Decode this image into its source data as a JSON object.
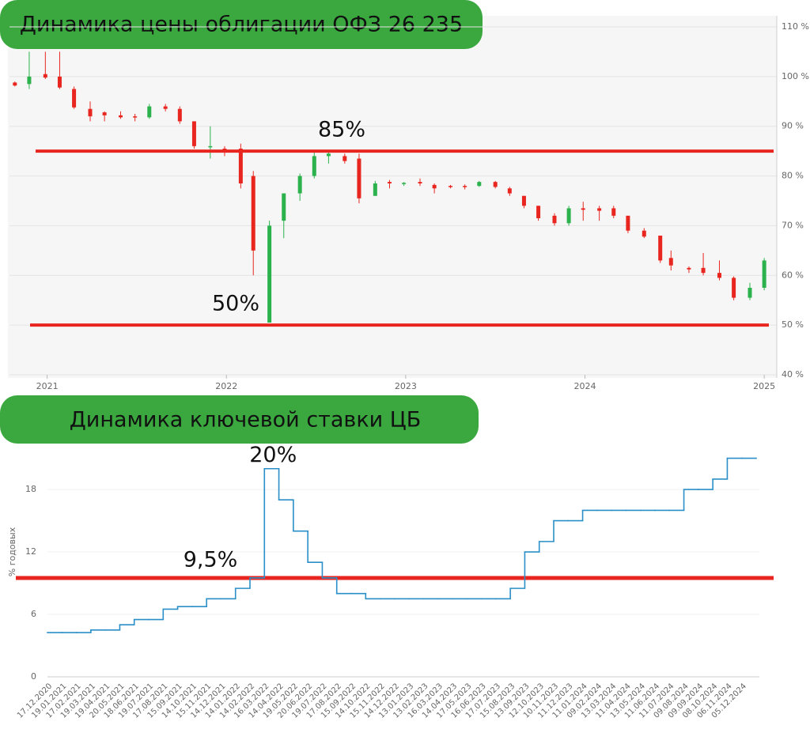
{
  "chart_data": [
    {
      "type": "candlestick",
      "title": "Динамика цены облигации ОФЗ 26 235",
      "x": [
        2020.82,
        2020.9,
        2020.99,
        2021.07,
        2021.15,
        2021.24,
        2021.32,
        2021.41,
        2021.49,
        2021.57,
        2021.66,
        2021.74,
        2021.82,
        2021.91,
        2021.99,
        2022.08,
        2022.15,
        2022.24,
        2022.32,
        2022.41,
        2022.49,
        2022.57,
        2022.66,
        2022.74,
        2022.83,
        2022.91,
        2022.99,
        2023.08,
        2023.16,
        2023.25,
        2023.33,
        2023.41,
        2023.5,
        2023.58,
        2023.66,
        2023.74,
        2023.83,
        2023.91,
        2023.99,
        2024.08,
        2024.16,
        2024.24,
        2024.33,
        2024.42,
        2024.48,
        2024.58,
        2024.66,
        2024.75,
        2024.83,
        2024.92,
        2025.0
      ],
      "open": [
        98.8,
        98.5,
        100.5,
        100,
        97.5,
        93.5,
        92.8,
        92.2,
        92,
        91.8,
        94,
        93.5,
        91,
        86,
        85.5,
        85.5,
        80,
        50.5,
        71,
        76.5,
        80,
        84,
        84,
        83.5,
        76,
        78.8,
        78.5,
        78.8,
        78.2,
        78,
        78,
        78,
        78.8,
        77.5,
        76,
        74,
        72,
        70.5,
        73.5,
        73.5,
        73.5,
        72,
        69,
        68,
        63.5,
        61.5,
        61.5,
        60.5,
        59.5,
        55.5,
        57.5
      ],
      "high": [
        99,
        105,
        105,
        105,
        98,
        95,
        93,
        93,
        92.5,
        94.5,
        94.5,
        94,
        91,
        90,
        86,
        86.5,
        81,
        71,
        76.5,
        80.5,
        85,
        85,
        84.5,
        84.5,
        79,
        79.2,
        78.8,
        79.5,
        78.5,
        78.2,
        78.3,
        79,
        79,
        77.8,
        76,
        74,
        72.5,
        74,
        74.8,
        74,
        74,
        72,
        69.5,
        68,
        65,
        61.8,
        64.5,
        63,
        59.8,
        58.5,
        63.5
      ],
      "low": [
        98,
        97.5,
        99.5,
        97.5,
        93.5,
        91,
        91,
        91.5,
        91,
        91.5,
        93,
        90.5,
        85.5,
        83.5,
        84,
        77.5,
        60,
        50.5,
        67.5,
        75,
        79.5,
        82.5,
        82.5,
        74.5,
        76,
        77.5,
        78,
        78,
        76.5,
        77.5,
        77.3,
        77.8,
        77.5,
        76,
        73.5,
        71,
        70,
        70,
        71,
        71,
        71.5,
        68.5,
        67.5,
        62.5,
        61,
        60.5,
        60,
        59,
        55,
        55,
        57
      ],
      "close": [
        98.2,
        100,
        99.8,
        97.8,
        93.8,
        92,
        92.2,
        91.8,
        91.8,
        94,
        93.5,
        91,
        86,
        86,
        85,
        78.5,
        65,
        70,
        76.5,
        80,
        84,
        84.5,
        83,
        75.5,
        78.5,
        78.5,
        78.6,
        78.5,
        77.5,
        77.8,
        77.8,
        78.8,
        77.8,
        76.5,
        74,
        71.5,
        70.5,
        73.5,
        73.2,
        73,
        72,
        69,
        67.8,
        63,
        62,
        61.2,
        60.5,
        59.5,
        55.5,
        57.5,
        63
      ],
      "up_color": "#2bb24c",
      "down_color": "#e8261f",
      "xlim": [
        2020.79,
        2025.07
      ],
      "xticks": [
        2021,
        2022,
        2023,
        2024,
        2025
      ],
      "ylim": [
        40,
        110
      ],
      "yticks": [
        {
          "value": 40,
          "label": "40 %"
        },
        {
          "value": 50,
          "label": "50 %"
        },
        {
          "value": 60,
          "label": "60 %"
        },
        {
          "value": 70,
          "label": "70 %"
        },
        {
          "value": 80,
          "label": "80 %"
        },
        {
          "value": 90,
          "label": "90 %"
        },
        {
          "value": 100,
          "label": "100 %"
        },
        {
          "value": 110,
          "label": "110 %"
        }
      ],
      "grid": true,
      "hlines": [
        {
          "value": 85,
          "label": "85%"
        },
        {
          "value": 50,
          "label": "50%"
        }
      ],
      "hline_color": "#e8261f"
    },
    {
      "type": "step",
      "title": "Динамика ключевой ставки ЦБ",
      "y_label": "% годовых",
      "categories": [
        "17.12.2020",
        "19.01.2021",
        "17.02.2021",
        "19.03.2021",
        "19.04.2021",
        "20.05.2021",
        "18.06.2021",
        "19.07.2021",
        "17.08.2021",
        "15.09.2021",
        "14.10.2021",
        "15.11.2021",
        "14.12.2021",
        "14.01.2022",
        "14.02.2022",
        "16.03.2022",
        "14.04.2022",
        "19.05.2022",
        "20.06.2022",
        "19.07.2022",
        "17.08.2022",
        "15.09.2022",
        "14.10.2022",
        "15.11.2022",
        "14.12.2022",
        "13.01.2023",
        "13.02.2023",
        "16.03.2023",
        "14.04.2023",
        "17.05.2023",
        "16.06.2023",
        "17.07.2023",
        "15.08.2023",
        "13.09.2023",
        "12.10.2023",
        "10.11.2023",
        "11.12.2023",
        "11.01.2024",
        "09.02.2024",
        "13.03.2024",
        "11.04.2024",
        "13.05.2024",
        "11.06.2024",
        "11.07.2024",
        "09.08.2024",
        "09.09.2024",
        "08.10.2024",
        "06.11.2024",
        "05.12.2024"
      ],
      "values": [
        4.25,
        4.25,
        4.25,
        4.5,
        4.5,
        5,
        5.5,
        5.5,
        6.5,
        6.75,
        6.75,
        7.5,
        7.5,
        8.5,
        9.5,
        20,
        17,
        14,
        11,
        9.5,
        8,
        8,
        7.5,
        7.5,
        7.5,
        7.5,
        7.5,
        7.5,
        7.5,
        7.5,
        7.5,
        7.5,
        8.5,
        12,
        13,
        15,
        15,
        16,
        16,
        16,
        16,
        16,
        16,
        16,
        18,
        18,
        19,
        21,
        21
      ],
      "color": "#2a8fc8",
      "ylim": [
        0,
        21.5
      ],
      "yticks": [
        0,
        6,
        12,
        18
      ],
      "hlines": [
        {
          "value": 9.5,
          "label": "9,5%"
        }
      ],
      "hline_color": "#e8261f",
      "annotations": [
        {
          "value": 20,
          "label": "20%"
        }
      ]
    }
  ]
}
